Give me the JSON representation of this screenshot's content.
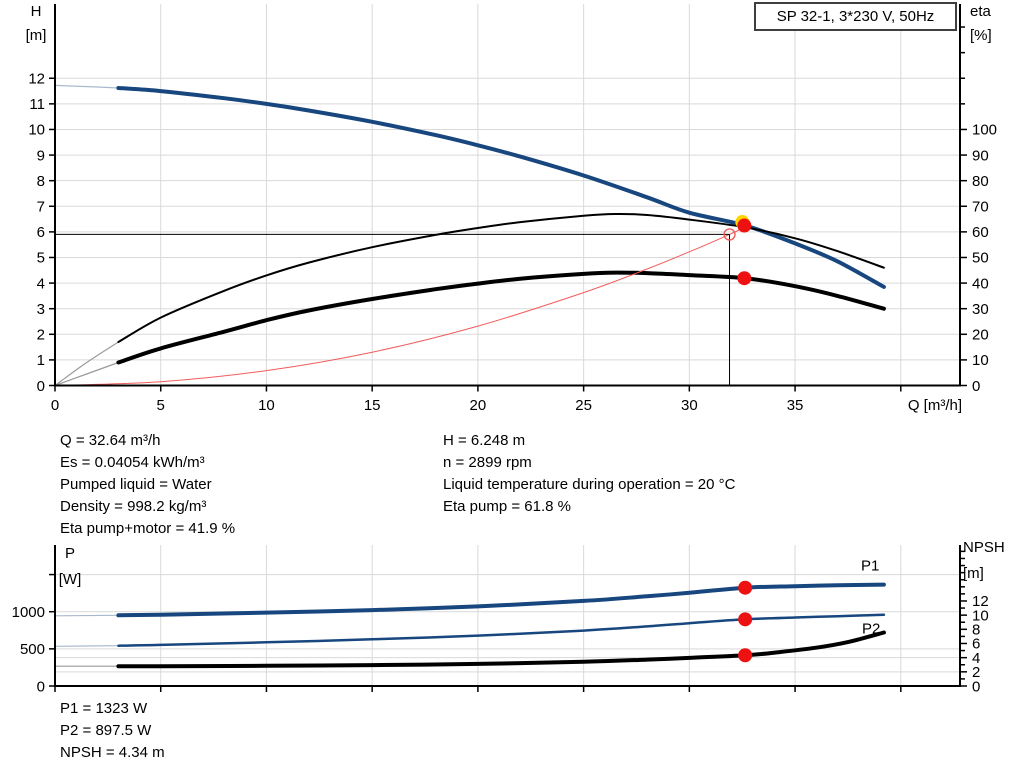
{
  "title_box": {
    "label": "SP 32-1, 3*230 V, 50Hz"
  },
  "info_top": {
    "left": [
      "Q = 32.64 m³/h",
      "Es = 0.04054 kWh/m³",
      "Pumped liquid = Water",
      "Density = 998.2 kg/m³",
      "Eta pump+motor = 41.9 %"
    ],
    "right": [
      "H = 6.248 m",
      "n = 2899 rpm",
      "Liquid temperature during operation = 20 °C",
      "Eta pump = 61.8 %"
    ]
  },
  "info_bottom": [
    "P1 = 1323 W",
    "P2 = 897.5 W",
    "NPSH = 4.34 m"
  ],
  "colors": {
    "curve_blue": "#17477e",
    "curve_blue_thin": "#a9b9cd",
    "curve_black": "#000000",
    "curve_black_thin": "#9a9a9a",
    "system_red": "#f25c5c",
    "marker_red": "#ee1111",
    "marker_halo": "#ffd400",
    "grid": "#d9d9d9",
    "axis": "#000000"
  },
  "chart_data": [
    {
      "id": "qh-chart",
      "type": "line",
      "title": "SP 32-1, 3*230 V, 50Hz",
      "x": {
        "title": "Q [m³/h]",
        "min": 0,
        "max": 42.8,
        "ticks": [
          0,
          5,
          10,
          15,
          20,
          25,
          30,
          35,
          40
        ],
        "tick_labels": [
          "0",
          "5",
          "10",
          "15",
          "20",
          "25",
          "30",
          "35",
          ""
        ],
        "grid": [
          5,
          10,
          15,
          20,
          25,
          30,
          35,
          40
        ]
      },
      "y_left": {
        "title": [
          "H",
          "[m]"
        ],
        "min": 0,
        "max": 14.9,
        "ticks": [
          0,
          1,
          2,
          3,
          4,
          5,
          6,
          7,
          8,
          9,
          10,
          11,
          12
        ],
        "tick_labels": [
          "0",
          "1",
          "2",
          "3",
          "4",
          "5",
          "6",
          "7",
          "8",
          "9",
          "10",
          "11",
          "12"
        ],
        "grid": [
          1,
          2,
          3,
          4,
          5,
          6,
          7,
          8,
          9,
          10,
          11,
          12
        ]
      },
      "y_right": {
        "title": [
          "eta",
          "[%]"
        ],
        "min": 0,
        "max": 149,
        "ticks": [
          0,
          10,
          20,
          30,
          40,
          50,
          60,
          70,
          80,
          90,
          100,
          110,
          120,
          130,
          140
        ],
        "tick_labels": [
          "0",
          "10",
          "20",
          "30",
          "40",
          "50",
          "60",
          "70",
          "80",
          "90",
          "100",
          "",
          "",
          "",
          ""
        ],
        "grid": []
      },
      "series": [
        {
          "name": "head-curve",
          "axis": "left",
          "color_key": "curve_blue",
          "thin_key": "curve_blue_thin",
          "width": 4,
          "thin_until": 3,
          "points": [
            [
              0,
              11.72
            ],
            [
              2,
              11.66
            ],
            [
              3,
              11.62
            ],
            [
              5,
              11.5
            ],
            [
              8,
              11.22
            ],
            [
              10,
              11.0
            ],
            [
              12,
              10.74
            ],
            [
              15,
              10.3
            ],
            [
              18,
              9.78
            ],
            [
              20,
              9.38
            ],
            [
              22,
              8.94
            ],
            [
              25,
              8.2
            ],
            [
              28,
              7.35
            ],
            [
              30,
              6.75
            ],
            [
              32.64,
              6.248
            ],
            [
              35,
              5.55
            ],
            [
              37,
              4.85
            ],
            [
              39.2,
              3.85
            ]
          ]
        },
        {
          "name": "eta-pump-curve",
          "axis": "right",
          "color_key": "curve_black",
          "thin_key": "curve_black_thin",
          "width": 2,
          "thin_until": 3,
          "points": [
            [
              0,
              0
            ],
            [
              1.5,
              9
            ],
            [
              3,
              17
            ],
            [
              5,
              26.5
            ],
            [
              8,
              37
            ],
            [
              10,
              43
            ],
            [
              12,
              48
            ],
            [
              15,
              54
            ],
            [
              18,
              58.8
            ],
            [
              20,
              61.5
            ],
            [
              22,
              63.8
            ],
            [
              25,
              66.3
            ],
            [
              26.5,
              67
            ],
            [
              28,
              66.6
            ],
            [
              30,
              64.8
            ],
            [
              32.64,
              61.8
            ],
            [
              35,
              57.5
            ],
            [
              37,
              52.5
            ],
            [
              39.2,
              46
            ]
          ]
        },
        {
          "name": "eta-pump-motor-curve",
          "axis": "right",
          "color_key": "curve_black",
          "thin_key": "curve_black_thin",
          "width": 4,
          "thin_until": 3,
          "points": [
            [
              0,
              0
            ],
            [
              1.5,
              4.5
            ],
            [
              3,
              9
            ],
            [
              5,
              14.5
            ],
            [
              8,
              21
            ],
            [
              10,
              25.5
            ],
            [
              12,
              29.3
            ],
            [
              15,
              33.8
            ],
            [
              18,
              37.6
            ],
            [
              20,
              39.8
            ],
            [
              22,
              41.7
            ],
            [
              25,
              43.6
            ],
            [
              26.5,
              44.1
            ],
            [
              28,
              43.9
            ],
            [
              30,
              43.1
            ],
            [
              32.64,
              41.9
            ],
            [
              35,
              38.8
            ],
            [
              37,
              35
            ],
            [
              39.2,
              30
            ]
          ]
        },
        {
          "name": "system-curve",
          "axis": "left",
          "color_key": "system_red",
          "width": 1,
          "points": [
            [
              0,
              0
            ],
            [
              5,
              0.15
            ],
            [
              10,
              0.58
            ],
            [
              15,
              1.3
            ],
            [
              20,
              2.32
            ],
            [
              25,
              3.63
            ],
            [
              28,
              4.55
            ],
            [
              30,
              5.22
            ],
            [
              31.9,
              5.9
            ],
            [
              32.9,
              6.28
            ]
          ]
        }
      ],
      "crosshair": {
        "q": 31.9,
        "h": 5.9
      },
      "markers": [
        {
          "name": "duty-point-qh",
          "axis": "left",
          "q": 32.6,
          "v": 6.248,
          "halo": true
        },
        {
          "name": "duty-point-eta",
          "axis": "right",
          "q": 32.6,
          "v": 41.9
        },
        {
          "name": "spec-duty-point",
          "axis": "left",
          "q": 31.9,
          "v": 5.9,
          "open": true
        }
      ],
      "annotations": []
    },
    {
      "id": "power-npsh-chart",
      "type": "line",
      "title": "",
      "x": {
        "title": "",
        "min": 0,
        "max": 42.8,
        "ticks": [
          0,
          5,
          10,
          15,
          20,
          25,
          30,
          35,
          40
        ],
        "tick_labels": [
          "",
          "",
          "",
          "",
          "",
          "",
          "",
          "",
          ""
        ],
        "grid": [
          5,
          10,
          15,
          20,
          25,
          30,
          35,
          40
        ]
      },
      "y_left": {
        "title": [
          "P",
          "[W]"
        ],
        "min": 0,
        "max": 1898,
        "ticks": [
          0,
          500,
          1000,
          1500
        ],
        "tick_labels": [
          "0",
          "500",
          "1000",
          ""
        ],
        "grid": [
          500,
          1000,
          1500
        ]
      },
      "y_right": {
        "title": [
          "NPSH",
          "[m]"
        ],
        "min": 0,
        "max": 19.9,
        "ticks": [
          0,
          1,
          2,
          3,
          4,
          5,
          6,
          7,
          8,
          9,
          10,
          11,
          12,
          13,
          14,
          15,
          16,
          17,
          18,
          19
        ],
        "tick_labels": [
          "0",
          "",
          "2",
          "",
          "4",
          "",
          "6",
          "",
          "8",
          "",
          "10",
          "",
          "12",
          "",
          "",
          "",
          "",
          "",
          "",
          ""
        ],
        "grid": [
          2,
          4
        ]
      },
      "series": [
        {
          "name": "p1-curve",
          "axis": "left",
          "color_key": "curve_blue",
          "thin_key": "curve_blue_thin",
          "width": 4,
          "thin_until": 3,
          "label": "P1",
          "points": [
            [
              0,
              945
            ],
            [
              3,
              952
            ],
            [
              5,
              960
            ],
            [
              10,
              988
            ],
            [
              15,
              1022
            ],
            [
              20,
              1072
            ],
            [
              25,
              1145
            ],
            [
              28,
              1208
            ],
            [
              30,
              1255
            ],
            [
              32.64,
              1323
            ],
            [
              35,
              1343
            ],
            [
              37,
              1355
            ],
            [
              39.2,
              1365
            ]
          ]
        },
        {
          "name": "p2-curve",
          "axis": "left",
          "color_key": "curve_blue",
          "thin_key": "curve_blue_thin",
          "width": 2.5,
          "thin_until": 3,
          "label": "P2",
          "points": [
            [
              0,
              535
            ],
            [
              3,
              542
            ],
            [
              5,
              553
            ],
            [
              10,
              588
            ],
            [
              15,
              628
            ],
            [
              20,
              678
            ],
            [
              25,
              746
            ],
            [
              28,
              802
            ],
            [
              30,
              845
            ],
            [
              32.64,
              897.5
            ],
            [
              35,
              922
            ],
            [
              37,
              940
            ],
            [
              39.2,
              958
            ]
          ]
        },
        {
          "name": "npsh-curve",
          "axis": "right",
          "color_key": "curve_black",
          "thin_key": "curve_black_thin",
          "width": 4,
          "thin_until": 3,
          "points": [
            [
              0,
              2.8
            ],
            [
              3,
              2.8
            ],
            [
              5,
              2.8
            ],
            [
              10,
              2.85
            ],
            [
              15,
              2.95
            ],
            [
              20,
              3.12
            ],
            [
              25,
              3.42
            ],
            [
              28,
              3.72
            ],
            [
              30,
              3.97
            ],
            [
              32.64,
              4.34
            ],
            [
              34,
              4.7
            ],
            [
              36,
              5.4
            ],
            [
              37.5,
              6.2
            ],
            [
              39.2,
              7.55
            ]
          ]
        }
      ],
      "markers": [
        {
          "name": "duty-point-p1",
          "axis": "left",
          "q": 32.64,
          "v": 1323
        },
        {
          "name": "duty-point-p2",
          "axis": "left",
          "q": 32.64,
          "v": 897.5
        },
        {
          "name": "duty-point-npsh",
          "axis": "right",
          "q": 32.64,
          "v": 4.34
        }
      ],
      "annotations": [
        {
          "text": "P1",
          "q": 38.55,
          "axis": "left",
          "v": 1628
        },
        {
          "text": "P2",
          "q": 38.6,
          "axis": "left",
          "v": 780
        }
      ]
    }
  ]
}
